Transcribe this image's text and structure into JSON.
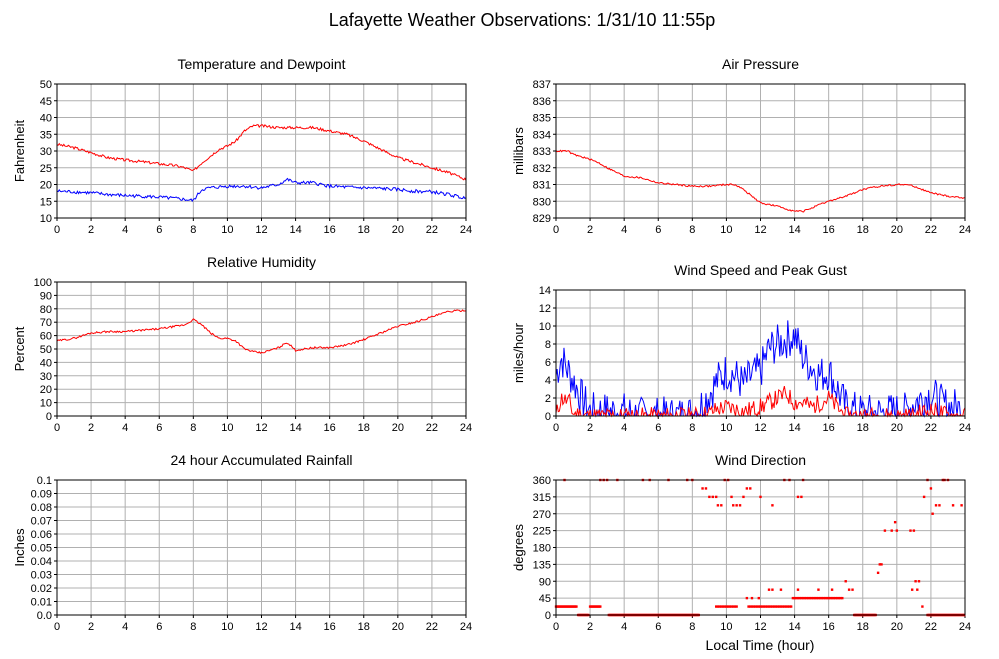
{
  "title": "Lafayette Weather Observations: 1/31/10 11:55p",
  "xlabel_common": "Local Time (hour)",
  "colors": {
    "red": "#ff0000",
    "blue": "#0000ff",
    "grid": "#b0b0b0",
    "frame": "#000000"
  },
  "chart_data": [
    {
      "type": "line",
      "title": "Temperature and Dewpoint",
      "ylabel": "Fahrenheit",
      "xlim": [
        0,
        24
      ],
      "ylim": [
        10,
        50
      ],
      "xticks": [
        0,
        2,
        4,
        6,
        8,
        10,
        12,
        14,
        16,
        18,
        20,
        22,
        24
      ],
      "yticks": [
        10,
        15,
        20,
        25,
        30,
        35,
        40,
        45,
        50
      ],
      "grid": true,
      "series": [
        {
          "color": "#ff0000",
          "noise": 0.4,
          "x": [
            0,
            1,
            2,
            3,
            4,
            5,
            6,
            7,
            7.5,
            8,
            8.5,
            9,
            9.5,
            10,
            10.5,
            11,
            11.5,
            12,
            13,
            14,
            15,
            16,
            17,
            18,
            19,
            20,
            21,
            22,
            23,
            24
          ],
          "y": [
            32,
            31,
            29.5,
            28,
            27.3,
            26.8,
            26.2,
            25.6,
            25,
            24,
            26.5,
            28.5,
            30.5,
            31.5,
            33,
            36,
            37.5,
            37.5,
            37,
            37,
            37,
            36,
            35,
            33,
            30.5,
            28,
            26.5,
            25,
            23.5,
            21.5
          ]
        },
        {
          "color": "#0000ff",
          "noise": 0.5,
          "x": [
            0,
            1,
            2,
            3,
            4,
            5,
            6,
            7,
            7.5,
            8,
            8.5,
            9,
            10,
            11,
            12,
            13,
            13.5,
            14,
            15,
            16,
            17,
            18,
            19,
            20,
            21,
            22,
            23,
            24
          ],
          "y": [
            18,
            17.8,
            17.5,
            17,
            16.7,
            16.5,
            16.2,
            15.8,
            15.5,
            15.2,
            18.5,
            19,
            19.5,
            19.5,
            19,
            20,
            21.5,
            20.5,
            20.5,
            19.5,
            19.2,
            19,
            18.8,
            18.5,
            18,
            17.8,
            17,
            15.8
          ]
        }
      ]
    },
    {
      "type": "line",
      "title": "Air Pressure",
      "ylabel": "millibars",
      "xlim": [
        0,
        24
      ],
      "ylim": [
        829,
        837
      ],
      "xticks": [
        0,
        2,
        4,
        6,
        8,
        10,
        12,
        14,
        16,
        18,
        20,
        22,
        24
      ],
      "yticks": [
        829,
        830,
        831,
        832,
        833,
        834,
        835,
        836,
        837
      ],
      "grid": true,
      "series": [
        {
          "color": "#ff0000",
          "noise": 0.05,
          "x": [
            0,
            0.7,
            1,
            2,
            2.5,
            3,
            4,
            5,
            6,
            7,
            8,
            9,
            10,
            10.5,
            11,
            12,
            13,
            14,
            14.5,
            15,
            16,
            17,
            18,
            19,
            20,
            20.5,
            21,
            22,
            23,
            24
          ],
          "y": [
            833,
            833,
            832.8,
            832.5,
            832.3,
            832,
            831.5,
            831.4,
            831.1,
            831,
            830.9,
            830.9,
            831,
            831,
            830.7,
            829.9,
            829.7,
            829.4,
            829.4,
            829.6,
            830,
            830.3,
            830.7,
            830.9,
            831,
            831,
            830.9,
            830.5,
            830.3,
            830.2
          ]
        }
      ]
    },
    {
      "type": "line",
      "title": "Relative Humidity",
      "ylabel": "Percent",
      "xlim": [
        0,
        24
      ],
      "ylim": [
        0,
        100
      ],
      "xticks": [
        0,
        2,
        4,
        6,
        8,
        10,
        12,
        14,
        16,
        18,
        20,
        22,
        24
      ],
      "yticks": [
        0,
        10,
        20,
        30,
        40,
        50,
        60,
        70,
        80,
        90,
        100
      ],
      "grid": true,
      "series": [
        {
          "color": "#ff0000",
          "noise": 0.7,
          "x": [
            0,
            1,
            2,
            3,
            4,
            5,
            6,
            7,
            7.5,
            8,
            8.5,
            9,
            9.5,
            10,
            10.5,
            11,
            11.5,
            12,
            13,
            13.5,
            14,
            15,
            16,
            17,
            18,
            19,
            20,
            21,
            22,
            23,
            24
          ],
          "y": [
            56,
            58,
            62,
            63,
            63,
            64,
            65,
            67,
            68,
            72,
            68,
            62,
            58,
            58,
            56,
            50,
            48,
            47,
            51,
            55,
            49,
            51,
            51,
            53,
            57,
            62,
            67,
            70,
            74,
            78,
            79
          ]
        }
      ]
    },
    {
      "type": "line",
      "title": "Wind Speed and Peak Gust",
      "ylabel": "miles/hour",
      "xlim": [
        0,
        24
      ],
      "ylim": [
        0,
        14
      ],
      "xticks": [
        0,
        2,
        4,
        6,
        8,
        10,
        12,
        14,
        16,
        18,
        20,
        22,
        24
      ],
      "yticks": [
        0,
        2,
        4,
        6,
        8,
        10,
        12,
        14
      ],
      "grid": true,
      "series": [
        {
          "color": "#0000ff",
          "noise": 2.2,
          "seed": 7,
          "x": [
            0,
            0.3,
            1,
            1.5,
            2,
            3,
            4,
            5,
            6,
            7,
            8,
            8.5,
            9,
            9.5,
            10,
            10.5,
            11,
            11.5,
            12,
            12.5,
            13,
            13.5,
            14,
            14.5,
            15,
            15.5,
            16,
            16.5,
            17,
            18,
            19,
            20,
            20.5,
            21,
            21.5,
            22,
            22.5,
            23,
            23.5,
            24
          ],
          "y": [
            4.5,
            6.5,
            4,
            2,
            0.5,
            0.5,
            0.5,
            0,
            0,
            0,
            0.3,
            1.2,
            2.5,
            4,
            5,
            4.5,
            3.5,
            4.5,
            5,
            7.5,
            8,
            8.5,
            9,
            6.5,
            5.5,
            4.5,
            5,
            3,
            1,
            0.3,
            0.3,
            0.5,
            0.5,
            1.5,
            2,
            2.5,
            1.5,
            1,
            1,
            0
          ]
        },
        {
          "color": "#ff0000",
          "noise": 1.0,
          "seed": 11,
          "x": [
            0,
            0.3,
            0.8,
            1,
            2,
            8,
            9,
            9.5,
            10,
            10.5,
            11,
            12,
            12.5,
            13,
            13.5,
            14,
            14.5,
            15,
            15.5,
            16,
            16.5,
            17,
            21,
            21.5,
            22,
            22.5,
            23,
            24
          ],
          "y": [
            0,
            2,
            1.5,
            0.3,
            0,
            0,
            0.3,
            0.8,
            1,
            0.8,
            0.5,
            1,
            1.5,
            2,
            2.5,
            1.5,
            1.5,
            1,
            1.5,
            2,
            1,
            0,
            0,
            0.5,
            0.6,
            0.5,
            0,
            0
          ]
        }
      ]
    },
    {
      "type": "line",
      "title": "24 hour Accumulated Rainfall",
      "ylabel": "Inches",
      "xlim": [
        0,
        24
      ],
      "ylim": [
        0,
        0.1
      ],
      "xticks": [
        0,
        2,
        4,
        6,
        8,
        10,
        12,
        14,
        16,
        18,
        20,
        22,
        24
      ],
      "yticks": [
        0.0,
        0.01,
        0.02,
        0.03,
        0.04,
        0.05,
        0.06,
        0.07,
        0.08,
        0.09,
        0.1
      ],
      "ytick_labels": [
        "0.0",
        "0.01",
        "0.02",
        "0.03",
        "0.04",
        "0.05",
        "0.06",
        "0.07",
        "0.08",
        "0.09",
        "0.1"
      ],
      "grid": true,
      "series": [
        {
          "color": "#ff0000",
          "noise": 0,
          "x": [
            0,
            24
          ],
          "y": [
            0,
            0
          ]
        }
      ]
    },
    {
      "type": "scatter",
      "title": "Wind Direction",
      "ylabel": "degrees",
      "xlabel": "Local Time (hour)",
      "xlim": [
        0,
        24
      ],
      "ylim": [
        0,
        360
      ],
      "xticks": [
        0,
        2,
        4,
        6,
        8,
        10,
        12,
        14,
        16,
        18,
        20,
        22,
        24
      ],
      "yticks": [
        0,
        45,
        90,
        135,
        180,
        225,
        270,
        315,
        360
      ],
      "grid": true,
      "series": [
        {
          "color": "#ff0000",
          "segments": [
            {
              "x0": 0,
              "x1": 1.2,
              "step": 0.06,
              "y": 22.5
            },
            {
              "x0": 1.3,
              "x1": 1.9,
              "step": 0.06,
              "y": 0
            },
            {
              "x0": 2.0,
              "x1": 2.6,
              "step": 0.06,
              "y": 22.5
            },
            {
              "x0": 3.1,
              "x1": 8.4,
              "step": 0.06,
              "y": 0
            },
            {
              "x0": 9.4,
              "x1": 10.6,
              "step": 0.1,
              "y": 22.5
            },
            {
              "x0": 11.3,
              "x1": 13.8,
              "step": 0.1,
              "y": 22.5
            },
            {
              "x0": 13.9,
              "x1": 16.8,
              "step": 0.1,
              "y": 45
            },
            {
              "x0": 17.5,
              "x1": 18.8,
              "step": 0.06,
              "y": 0
            },
            {
              "x0": 21.8,
              "x1": 24,
              "step": 0.06,
              "y": 0
            }
          ],
          "points": [
            [
              0.5,
              360
            ],
            [
              2.6,
              360
            ],
            [
              2.8,
              360
            ],
            [
              3.0,
              360
            ],
            [
              3.6,
              360
            ],
            [
              5.1,
              360
            ],
            [
              5.5,
              360
            ],
            [
              6.6,
              360
            ],
            [
              7.7,
              360
            ],
            [
              8.0,
              360
            ],
            [
              8.6,
              337.5
            ],
            [
              8.8,
              337.5
            ],
            [
              9.0,
              315
            ],
            [
              9.2,
              315
            ],
            [
              9.4,
              315
            ],
            [
              9.5,
              292.5
            ],
            [
              9.7,
              292.5
            ],
            [
              9.9,
              360
            ],
            [
              10.1,
              360
            ],
            [
              10.3,
              315
            ],
            [
              10.4,
              292.5
            ],
            [
              10.6,
              292.5
            ],
            [
              10.8,
              292.5
            ],
            [
              11.0,
              315
            ],
            [
              11.2,
              337.5
            ],
            [
              11.4,
              337.5
            ],
            [
              12.0,
              315
            ],
            [
              12.7,
              292.5
            ],
            [
              13.4,
              360
            ],
            [
              13.7,
              360
            ],
            [
              14.2,
              315
            ],
            [
              14.4,
              315
            ],
            [
              14.5,
              360
            ],
            [
              11.2,
              45
            ],
            [
              11.5,
              45
            ],
            [
              11.9,
              45
            ],
            [
              12.5,
              67.5
            ],
            [
              12.7,
              67.5
            ],
            [
              13.2,
              67.5
            ],
            [
              14.2,
              67.5
            ],
            [
              15.4,
              67.5
            ],
            [
              16.2,
              67.5
            ],
            [
              17.0,
              90
            ],
            [
              17.2,
              67.5
            ],
            [
              17.4,
              67.5
            ],
            [
              18.9,
              112.5
            ],
            [
              19.0,
              135
            ],
            [
              19.1,
              135
            ],
            [
              19.3,
              225
            ],
            [
              19.7,
              225
            ],
            [
              19.9,
              247.5
            ],
            [
              20.0,
              225
            ],
            [
              20.8,
              225
            ],
            [
              21.0,
              225
            ],
            [
              20.9,
              67.5
            ],
            [
              21.1,
              90
            ],
            [
              21.2,
              67.5
            ],
            [
              21.3,
              90
            ],
            [
              21.5,
              22.5
            ],
            [
              21.6,
              315
            ],
            [
              21.8,
              360
            ],
            [
              22.0,
              337.5
            ],
            [
              22.1,
              270
            ],
            [
              22.3,
              292.5
            ],
            [
              22.5,
              292.5
            ],
            [
              22.7,
              360
            ],
            [
              22.8,
              360
            ],
            [
              23.0,
              360
            ],
            [
              23.3,
              292.5
            ],
            [
              23.8,
              292.5
            ]
          ]
        }
      ]
    }
  ]
}
